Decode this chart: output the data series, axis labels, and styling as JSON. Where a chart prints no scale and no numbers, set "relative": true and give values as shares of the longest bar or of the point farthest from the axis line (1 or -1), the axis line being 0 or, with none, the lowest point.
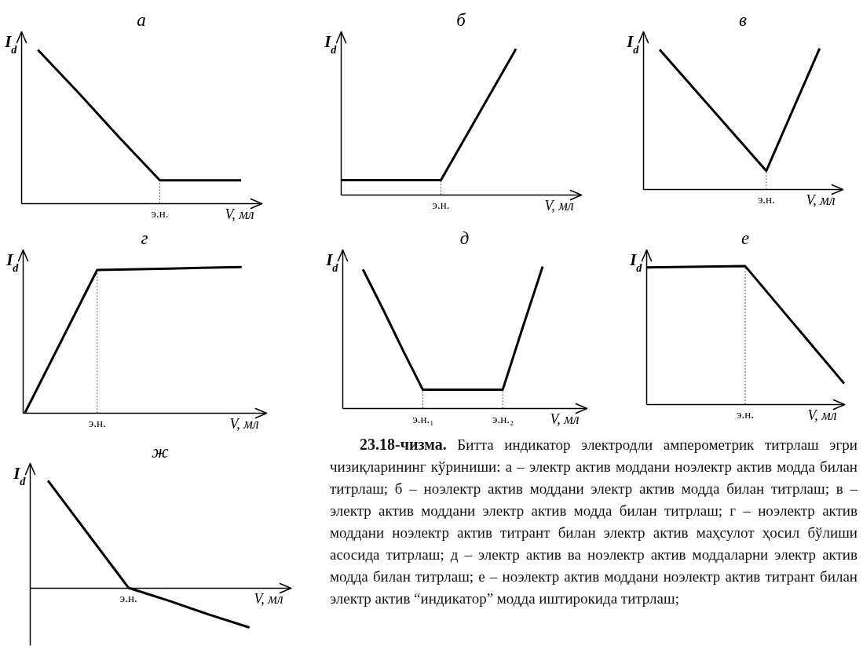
{
  "chart_data": [
    {
      "type": "line",
      "title": "а",
      "xlabel": "V, мл",
      "ylabel": "I$_{d}$",
      "relative": true,
      "categories": [
        null,
        null,
        null,
        null,
        null,
        null
      ],
      "series": [
        {
          "color": "#000000",
          "values": [
            1.0,
            0.72,
            0.43,
            0.15,
            0.15,
            0.15
          ]
        }
      ],
      "annotations": [
        {
          "text": "э.н.",
          "y": 0.15
        }
      ]
    },
    {
      "type": "line",
      "title": "б",
      "xlabel": "V, мл",
      "ylabel": "I$_{d}$",
      "relative": true,
      "categories": [
        null,
        null,
        null,
        null,
        null,
        null,
        null,
        null
      ],
      "series": [
        {
          "color": "#000000",
          "values": [
            0.1,
            0.1,
            0.1,
            0.1,
            0.1,
            0.4,
            0.7,
            1.0
          ]
        }
      ],
      "annotations": [
        {
          "text": "э.н.",
          "y": 0.1
        }
      ]
    },
    {
      "type": "line",
      "title": "в",
      "xlabel": "V, мл",
      "ylabel": "I$_{d}$",
      "relative": true,
      "categories": [
        null,
        null,
        null,
        null
      ],
      "series": [
        {
          "color": "#000000",
          "values": [
            0.99,
            0.56,
            0.13,
            1.0
          ]
        }
      ],
      "annotations": [
        {
          "text": "э.н.",
          "y": 0.13
        }
      ]
    },
    {
      "type": "line",
      "title": "г",
      "xlabel": "V, мл",
      "ylabel": "I$_{d}$",
      "relative": true,
      "categories": [
        null,
        null,
        null,
        null
      ],
      "series": [
        {
          "color": "#000000",
          "values": [
            0,
            0.98,
            0.99,
            1.0
          ]
        }
      ],
      "annotations": [
        "э.н."
      ]
    },
    {
      "type": "line",
      "title": "д",
      "xlabel": "V, мл",
      "ylabel": "I$_{d}$",
      "relative": true,
      "categories": [
        null,
        null,
        null,
        "э.н.₁",
        null,
        null,
        null,
        "э.н.₂",
        null,
        null
      ],
      "series": [
        {
          "color": "#000000",
          "values": [
            0.98,
            0.7,
            0.41,
            0.13,
            0.13,
            0.13,
            0.13,
            0.13,
            0.57,
            1.0
          ]
        }
      ],
      "ref_lines": [
        {
          "axis": "x",
          "value": "э.н.₁",
          "line_style": "dotted"
        },
        {
          "axis": "x",
          "value": "э.н.₂",
          "line_style": "dotted"
        }
      ]
    },
    {
      "type": "line",
      "title": "е",
      "xlabel": "V, мл",
      "ylabel": "I$_{d}$",
      "relative": true,
      "categories": [
        null,
        null,
        null
      ],
      "series": [
        {
          "color": "#000000",
          "values": [
            0.99,
            1.0,
            0.15
          ]
        }
      ],
      "annotations": [
        "э.н."
      ]
    },
    {
      "type": "line",
      "title": "ж",
      "xlabel": "V, мл",
      "ylabel": "I$_{d}$",
      "relative": true,
      "categories": [
        null,
        null,
        null,
        null,
        null,
        null
      ],
      "series": [
        {
          "color": "#000000",
          "values": [
            1.0,
            0.5,
            0,
            -0.12,
            -0.25,
            -0.37
          ]
        }
      ],
      "annotations": [
        {
          "text": "э.н.",
          "y": 0
        }
      ]
    },
    {
      "type": "other",
      "title": "23.18-чизма.",
      "annotations": [
        "Битта индикатор электродли амперометрик титрлаш эгри чизиқларининг кўриниши: а – электр актив моддани ноэлектр актив модда билан титрлаш; б – ноэлектр актив моддани электр актив модда билан титрлаш; в – электр актив моддани электр актив модда билан титрлаш; г – ноэлектр актив моддани ноэлектр актив титрант билан электр актив маҳсулот ҳосил бўлиши асосида титрлаш; д – электр актив ва ноэлектр актив моддаларни электр актив модда билан титрлаш; е – ноэлектр актив моддани ноэлектр актив титрант билан электр актив “индикатор” модда иштирокида титрлаш;"
      ]
    }
  ]
}
